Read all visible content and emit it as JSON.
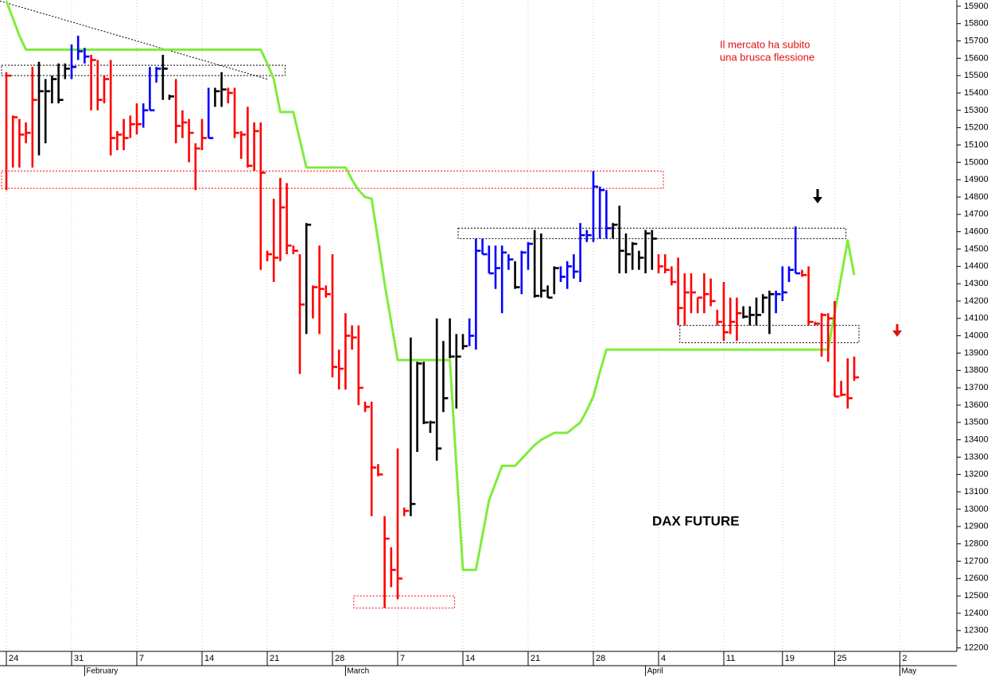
{
  "chart_data": {
    "type": "ohlc",
    "annotations": [
      "Il mercato ha subito",
      "una brusca flessione",
      "DAX FUTURE"
    ],
    "ylim": [
      12180,
      15936
    ],
    "yticks": [
      12200,
      12300,
      12400,
      12500,
      12600,
      12700,
      12800,
      12900,
      13000,
      13100,
      13200,
      13300,
      13400,
      13500,
      13600,
      13700,
      13800,
      13900,
      14000,
      14100,
      14200,
      14300,
      14400,
      14500,
      14600,
      14700,
      14800,
      14900,
      15000,
      15100,
      15200,
      15300,
      15400,
      15500,
      15600,
      15700,
      15800,
      15900
    ],
    "grid": true,
    "categories": [
      "24",
      null,
      null,
      null,
      null,
      null,
      null,
      null,
      null,
      null,
      "31",
      null,
      null,
      null,
      null,
      null,
      null,
      null,
      null,
      null,
      "7",
      null,
      null,
      null,
      null,
      null,
      null,
      null,
      null,
      null,
      "14",
      null,
      null,
      null,
      null,
      null,
      null,
      null,
      null,
      null,
      "21",
      null,
      null,
      null,
      null,
      null,
      null,
      null,
      null,
      null,
      "28",
      null,
      null,
      null,
      null,
      null,
      null,
      null,
      null,
      null,
      "7",
      null,
      null,
      null,
      null,
      null,
      null,
      null,
      null,
      null,
      "14",
      null,
      null,
      null,
      null,
      null,
      null,
      null,
      null,
      null,
      "21",
      null,
      null,
      null,
      null,
      null,
      null,
      null,
      null,
      null,
      "28",
      null,
      null,
      null,
      null,
      null,
      null,
      null,
      null,
      null,
      "4",
      null,
      null,
      null,
      null,
      null,
      null,
      null,
      null,
      null,
      "11",
      null,
      null,
      null,
      null,
      null,
      null,
      null,
      null,
      "19",
      null,
      null,
      null,
      null,
      null,
      null,
      null,
      "25",
      null,
      null,
      null,
      null,
      null,
      null,
      null,
      null,
      null,
      "2",
      null,
      null,
      null,
      null,
      null,
      null,
      null,
      null
    ],
    "months": [
      null,
      null,
      null,
      null,
      null,
      null,
      null,
      null,
      null,
      null,
      null,
      null,
      "February",
      null,
      null,
      null,
      null,
      null,
      null,
      null,
      null,
      null,
      null,
      null,
      null,
      null,
      null,
      null,
      null,
      null,
      null,
      null,
      null,
      null,
      null,
      null,
      null,
      null,
      null,
      null,
      null,
      null,
      null,
      null,
      null,
      null,
      null,
      null,
      null,
      null,
      null,
      null,
      "March",
      null,
      null,
      null,
      null,
      null,
      null,
      null,
      null,
      null,
      null,
      null,
      null,
      null,
      null,
      null,
      null,
      null,
      null,
      null,
      null,
      null,
      null,
      null,
      null,
      null,
      null,
      null,
      null,
      null,
      null,
      null,
      null,
      null,
      null,
      null,
      null,
      null,
      null,
      null,
      null,
      null,
      null,
      null,
      null,
      null,
      "April",
      null,
      null,
      null,
      null,
      null,
      null,
      null,
      null,
      null,
      null,
      null,
      null,
      null,
      null,
      null,
      null,
      null,
      null,
      null,
      null,
      null,
      null,
      null,
      null,
      null,
      null,
      null,
      null,
      null,
      null,
      null,
      null,
      null,
      null,
      null,
      null,
      null,
      null,
      "May",
      null,
      null,
      null,
      null,
      null,
      null,
      null,
      null
    ],
    "ohlc": {
      "high": [
        15520,
        15270,
        15250,
        15230,
        15550,
        15580,
        15480,
        15500,
        15570,
        15570,
        15680,
        15730,
        15660,
        15620,
        15590,
        15500,
        15590,
        15180,
        15250,
        15270,
        15340,
        15340,
        15550,
        15550,
        15620,
        15390,
        15480,
        15300,
        15250,
        15110,
        15250,
        15430,
        15430,
        15520,
        15430,
        15430,
        15180,
        15320,
        15230,
        15230,
        14490,
        14790,
        14910,
        14880,
        14520,
        14470,
        14650,
        14290,
        14520,
        14290,
        14470,
        13920,
        14130,
        14060,
        14060,
        13620,
        13620,
        13260,
        12960,
        12780,
        13350,
        13010,
        13990,
        13850,
        13850,
        13510,
        14100,
        13970,
        14100,
        14010,
        14010,
        14100,
        14560,
        14560,
        14520,
        14520,
        14520,
        14470,
        14430,
        14490,
        14540,
        14610,
        14590,
        14290,
        14400,
        14400,
        14430,
        14470,
        14650,
        14610,
        14950,
        14860,
        14840,
        14650,
        14750,
        14590,
        14540,
        14490,
        14610,
        14610,
        14470,
        14470,
        14400,
        14450,
        14360,
        14360,
        14220,
        14360,
        14330,
        14150,
        14310,
        14220,
        14220,
        14170,
        14170,
        14220,
        14240,
        14260,
        14260,
        14400,
        14400,
        14630,
        14380,
        14400,
        14080,
        14130,
        14130,
        14200,
        13740,
        13870,
        13880,
        null,
        null,
        null,
        null,
        null,
        null,
        null,
        null,
        null,
        null,
        null,
        null,
        null,
        null,
        null
      ],
      "low": [
        14840,
        14970,
        14970,
        15110,
        14970,
        15040,
        15110,
        15340,
        15340,
        15480,
        15480,
        15590,
        15570,
        15300,
        15300,
        15340,
        15040,
        15070,
        15070,
        15140,
        15160,
        15200,
        15300,
        15460,
        15360,
        15360,
        15110,
        15140,
        15000,
        14840,
        15070,
        15140,
        15320,
        15320,
        15340,
        15140,
        15020,
        14970,
        14950,
        14380,
        14430,
        14310,
        14430,
        14470,
        14470,
        13780,
        14010,
        14100,
        14010,
        14220,
        13760,
        13690,
        13690,
        13920,
        13600,
        13560,
        12960,
        13190,
        12430,
        12550,
        12480,
        12960,
        12960,
        13330,
        13490,
        13440,
        13280,
        13560,
        13870,
        13580,
        13920,
        13940,
        13920,
        14470,
        14360,
        14270,
        14130,
        14380,
        14270,
        14240,
        14380,
        14220,
        14220,
        14220,
        14240,
        14310,
        14270,
        14330,
        14310,
        14540,
        14540,
        14560,
        14560,
        14560,
        14360,
        14360,
        14380,
        14380,
        14360,
        14380,
        14360,
        14360,
        14290,
        14060,
        14060,
        14130,
        14130,
        14130,
        14170,
        14060,
        13970,
        14010,
        13970,
        14100,
        14060,
        14060,
        14130,
        14010,
        14130,
        14200,
        14310,
        14360,
        14340,
        14060,
        14060,
        13880,
        13850,
        13650,
        13650,
        13580,
        13740,
        null,
        null,
        null,
        null,
        null,
        null,
        null,
        null,
        null,
        null,
        null,
        null,
        null,
        null,
        null
      ],
      "close": [
        15500,
        15260,
        15160,
        15170,
        15360,
        15410,
        15410,
        15480,
        15360,
        15540,
        15550,
        15640,
        15610,
        15590,
        15360,
        15480,
        15140,
        15160,
        15140,
        15220,
        15220,
        15300,
        15300,
        15540,
        15540,
        15380,
        15210,
        15230,
        15170,
        15080,
        15140,
        15140,
        15410,
        15420,
        15400,
        15170,
        15160,
        14980,
        15180,
        14940,
        14470,
        14450,
        14740,
        14520,
        14490,
        14180,
        14640,
        14280,
        14270,
        14240,
        13820,
        13810,
        14000,
        13990,
        13700,
        13590,
        13240,
        13200,
        12830,
        12650,
        12600,
        12990,
        13030,
        13840,
        13500,
        13500,
        13350,
        13640,
        13880,
        13880,
        13940,
        14000,
        14490,
        14470,
        14360,
        14390,
        14480,
        14440,
        14280,
        14480,
        14530,
        14230,
        14260,
        14220,
        14390,
        14340,
        14400,
        14370,
        14580,
        14580,
        14860,
        14840,
        14620,
        14640,
        14490,
        14470,
        14530,
        14450,
        14590,
        14560,
        14400,
        14380,
        14310,
        14160,
        14250,
        14250,
        14220,
        14240,
        14200,
        14080,
        14020,
        14080,
        14130,
        14110,
        14120,
        14120,
        14220,
        14240,
        14240,
        14250,
        14380,
        14360,
        14350,
        14080,
        14070,
        14120,
        14100,
        13650,
        13660,
        13640,
        13760,
        null,
        null,
        null,
        null,
        null,
        null,
        null,
        null,
        null,
        null,
        null,
        null,
        null,
        null,
        null
      ],
      "colors": [
        "red",
        "red",
        "red",
        "red",
        "red",
        "black",
        "black",
        "black",
        "black",
        "black",
        "blue",
        "blue",
        "blue",
        "red",
        "red",
        "red",
        "red",
        "red",
        "red",
        "red",
        "red",
        "blue",
        "blue",
        "blue",
        "black",
        "black",
        "red",
        "red",
        "red",
        "red",
        "red",
        "blue",
        "black",
        "black",
        "red",
        "red",
        "red",
        "red",
        "red",
        "red",
        "red",
        "red",
        "red",
        "red",
        "red",
        "red",
        "black",
        "red",
        "red",
        "red",
        "red",
        "red",
        "red",
        "red",
        "red",
        "red",
        "red",
        "red",
        "red",
        "red",
        "red",
        "red",
        "black",
        "black",
        "black",
        "black",
        "black",
        "black",
        "black",
        "black",
        "black",
        "blue",
        "blue",
        "blue",
        "blue",
        "blue",
        "blue",
        "blue",
        "black",
        "blue",
        "blue",
        "black",
        "black",
        "black",
        "black",
        "blue",
        "blue",
        "blue",
        "blue",
        "blue",
        "blue",
        "blue",
        "blue",
        "black",
        "black",
        "black",
        "black",
        "black",
        "black",
        "black",
        "red",
        "red",
        "red",
        "red",
        "red",
        "red",
        "red",
        "red",
        "red",
        "red",
        "red",
        "red",
        "red",
        "black",
        "black",
        "black",
        "black",
        "black",
        "blue",
        "blue",
        "blue",
        "blue",
        "red",
        "red",
        "red",
        "red",
        "red",
        "red",
        "red",
        "red",
        "red",
        null,
        null,
        null,
        null,
        null,
        null,
        null,
        null,
        null,
        null,
        null,
        null,
        null,
        null,
        null
      ]
    },
    "stop_line": {
      "color": "#7ded3a",
      "values": [
        15930,
        15830,
        15730,
        15650,
        15650,
        15650,
        15650,
        15650,
        15650,
        15650,
        15650,
        15650,
        15650,
        15650,
        15650,
        15650,
        15650,
        15650,
        15650,
        15650,
        15650,
        15650,
        15650,
        15650,
        15650,
        15650,
        15650,
        15650,
        15650,
        15650,
        15650,
        15650,
        15650,
        15650,
        15650,
        15650,
        15650,
        15650,
        15650,
        15650,
        15570,
        15480,
        15290,
        15290,
        15290,
        15130,
        14970,
        14970,
        14970,
        14970,
        14970,
        14970,
        14970,
        14900,
        14840,
        14800,
        14790,
        14550,
        14300,
        14080,
        13860,
        13860,
        13860,
        13860,
        13860,
        13860,
        13860,
        13860,
        13860,
        13250,
        12650,
        12650,
        12650,
        12850,
        13050,
        13150,
        13250,
        13250,
        13250,
        13290,
        13330,
        13370,
        13400,
        13420,
        13440,
        13440,
        13440,
        13470,
        13500,
        13570,
        13650,
        13790,
        13920,
        13920,
        13920,
        13920,
        13920,
        13920,
        13920,
        13920,
        13920,
        13920,
        13920,
        13920,
        13920,
        13920,
        13920,
        13920,
        13920,
        13920,
        13920,
        13920,
        13920,
        13920,
        13920,
        13920,
        13920,
        13920,
        13920,
        13920,
        13920,
        13920,
        13920,
        13920,
        13920,
        13920,
        13920,
        14130,
        14340,
        14550,
        14350,
        null,
        null,
        null,
        null,
        null,
        null,
        null,
        null,
        null,
        null,
        null,
        null,
        null,
        null,
        null
      ]
    },
    "zones": [
      {
        "from": 0,
        "to": 42,
        "low": 15500,
        "high": 15560,
        "color": "black"
      },
      {
        "from": 0,
        "to": 100,
        "low": 14850,
        "high": 14950,
        "color": "red"
      },
      {
        "from": 70,
        "to": 128,
        "low": 14560,
        "high": 14620,
        "color": "black"
      },
      {
        "from": 104,
        "to": 130,
        "low": 13960,
        "high": 14060,
        "color": "black"
      },
      {
        "from": 54,
        "to": 68,
        "low": 12430,
        "high": 12500,
        "color": "red"
      }
    ],
    "trendline": {
      "from": 0,
      "to": 40,
      "start": 15930,
      "end": 15480
    }
  }
}
